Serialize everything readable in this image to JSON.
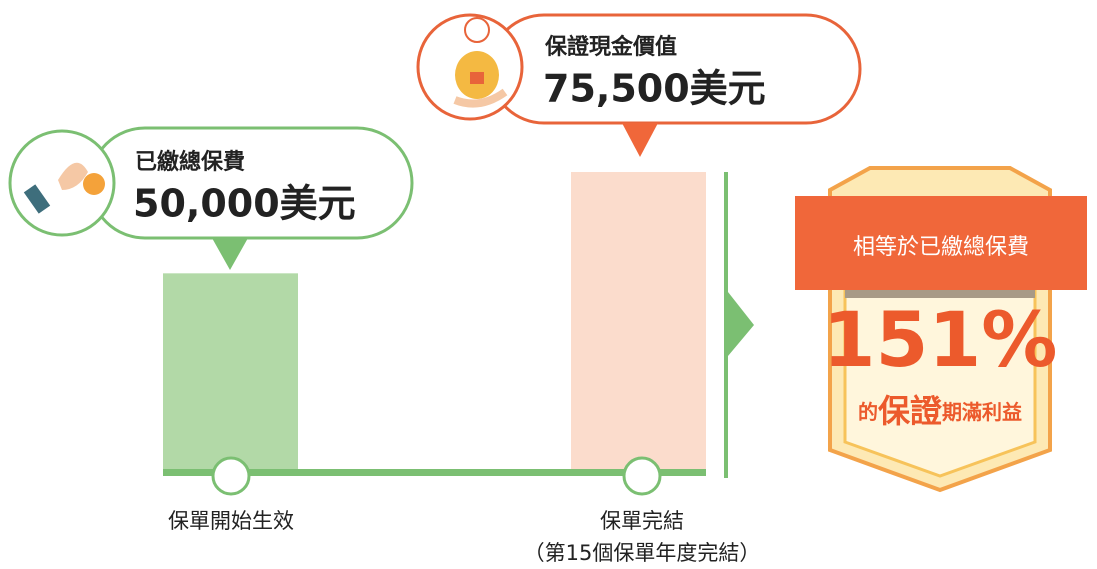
{
  "chart_data": {
    "type": "bar",
    "categories": [
      "保單開始生效",
      "保單完結"
    ],
    "category_notes": [
      null,
      "（第15個保單年度完結）"
    ],
    "bar_titles": [
      "已繳總保費",
      "保證現金價值"
    ],
    "values": [
      50000,
      75500
    ],
    "value_labels": [
      "50,000美元",
      "75,500美元"
    ],
    "colors": [
      "#b2d9a7",
      "#fbdccc"
    ],
    "badge": {
      "header": "相等於已繳總保費",
      "percent": "151%",
      "prefix": "的",
      "highlight": "保證",
      "suffix": "期滿利益"
    }
  }
}
